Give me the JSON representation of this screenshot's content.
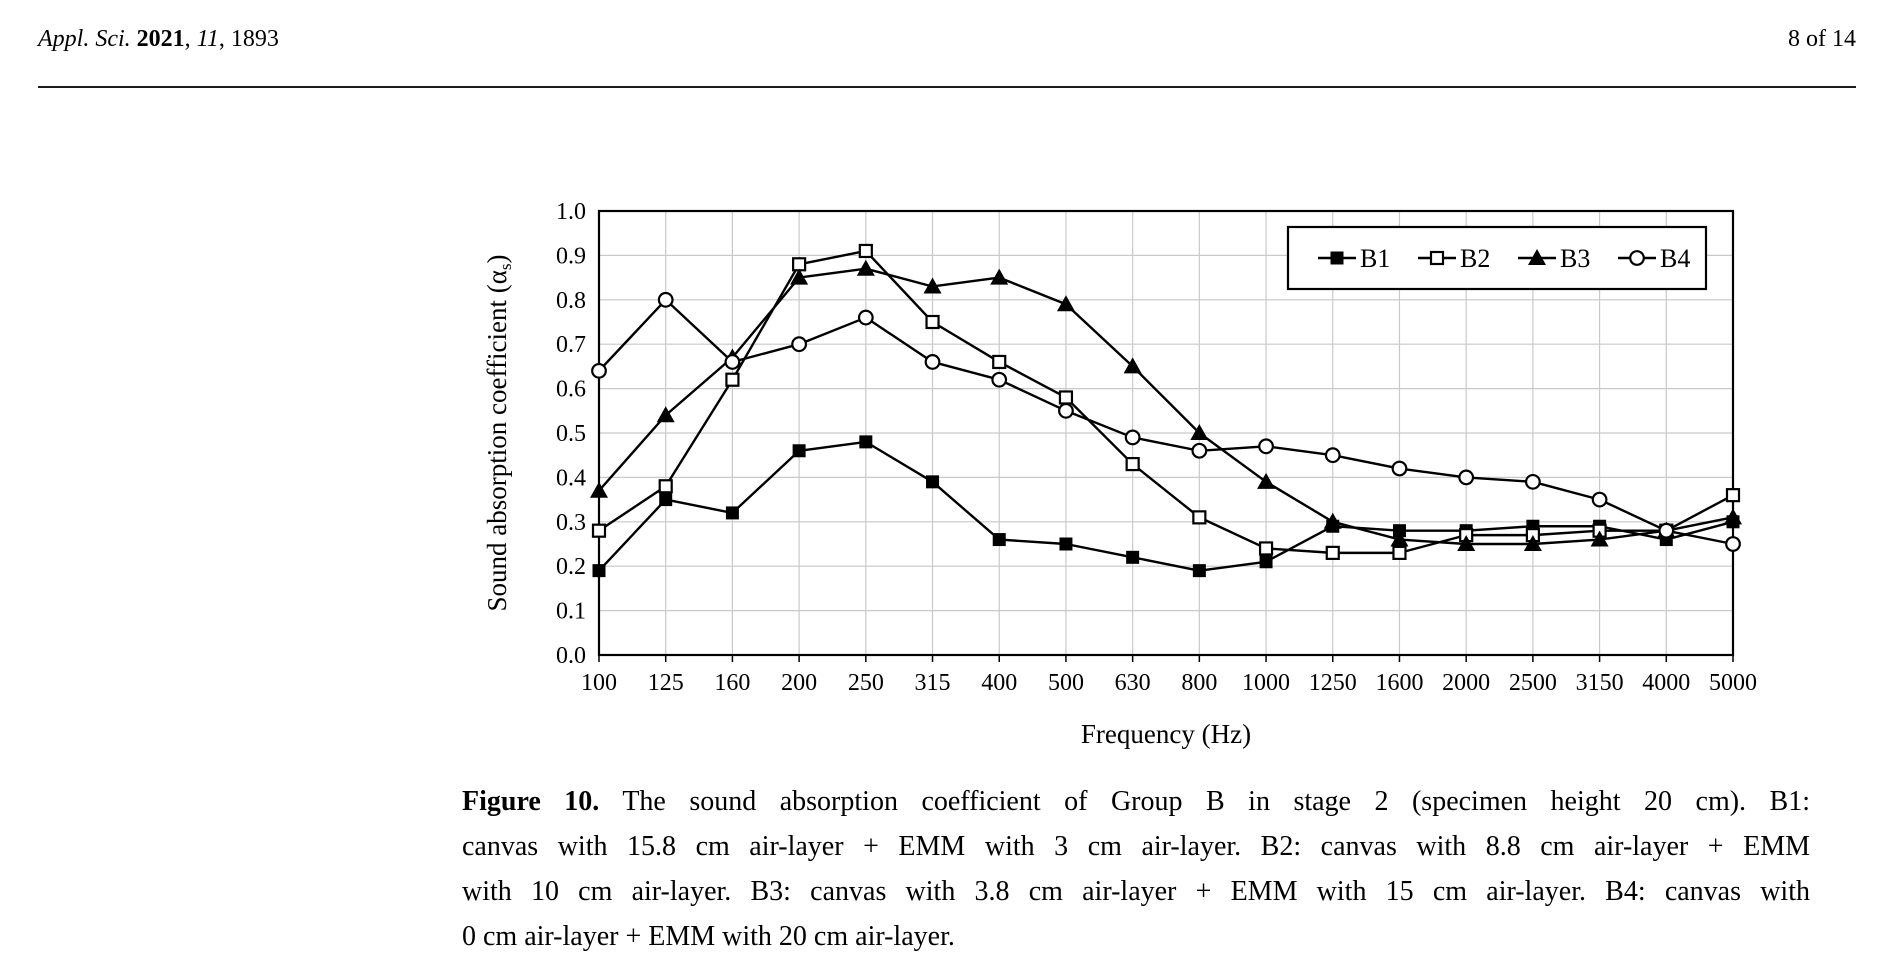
{
  "header": {
    "left_parts": [
      {
        "text": "Appl. Sci. ",
        "style": "italic"
      },
      {
        "text": "2021",
        "style": "bold"
      },
      {
        "text": ", ",
        "style": "normal"
      },
      {
        "text": "11",
        "style": "italic"
      },
      {
        "text": ", 1893",
        "style": "normal"
      }
    ],
    "page_info": "8 of 14"
  },
  "figure": {
    "caption": {
      "label": "Figure 10.",
      "line1_rest": "The sound absorption coefficient of Group B in stage 2 (specimen height 20 cm). B1:",
      "line2": "canvas with 15.8 cm air-layer + EMM with 3 cm air-layer. B2: canvas with 8.8 cm air-layer + EMM",
      "line3": "with 10 cm air-layer. B3: canvas with 3.8 cm air-layer + EMM with 15 cm air-layer. B4: canvas with",
      "line4": "0 cm air-layer + EMM with 20 cm air-layer."
    }
  },
  "chart_data": {
    "type": "line",
    "categories": [
      "100",
      "125",
      "160",
      "200",
      "250",
      "315",
      "400",
      "500",
      "630",
      "800",
      "1000",
      "1250",
      "1600",
      "2000",
      "2500",
      "3150",
      "4000",
      "5000"
    ],
    "series": [
      {
        "name": "B1",
        "marker": "filled-square",
        "values": [
          0.19,
          0.35,
          0.32,
          0.46,
          0.48,
          0.39,
          0.26,
          0.25,
          0.22,
          0.19,
          0.21,
          0.29,
          0.28,
          0.28,
          0.29,
          0.29,
          0.26,
          0.3
        ]
      },
      {
        "name": "B2",
        "marker": "open-square",
        "values": [
          0.28,
          0.38,
          0.62,
          0.88,
          0.91,
          0.75,
          0.66,
          0.58,
          0.43,
          0.31,
          0.24,
          0.23,
          0.23,
          0.27,
          0.27,
          0.28,
          0.28,
          0.36
        ]
      },
      {
        "name": "B3",
        "marker": "filled-triangle",
        "values": [
          0.37,
          0.54,
          0.67,
          0.85,
          0.87,
          0.83,
          0.85,
          0.79,
          0.65,
          0.5,
          0.39,
          0.3,
          0.26,
          0.25,
          0.25,
          0.26,
          0.28,
          0.31
        ]
      },
      {
        "name": "B4",
        "marker": "open-circle",
        "values": [
          0.64,
          0.8,
          0.66,
          0.7,
          0.76,
          0.66,
          0.62,
          0.55,
          0.49,
          0.46,
          0.47,
          0.45,
          0.42,
          0.4,
          0.39,
          0.35,
          0.28,
          0.25
        ]
      }
    ],
    "xlabel": "Frequency (Hz)",
    "ylabel": {
      "text": "Sound absorption coefficient (α",
      "subscript": "s",
      "suffix": ")"
    },
    "ylim": [
      0.0,
      1.0
    ],
    "ytick_step": 0.1,
    "y_tick_labels": [
      "0.0",
      "0.1",
      "0.2",
      "0.3",
      "0.4",
      "0.5",
      "0.6",
      "0.7",
      "0.8",
      "0.9",
      "1.0"
    ],
    "grid": true,
    "legend_position": "top-right",
    "line_color": "#000000",
    "grid_color": "#c9c9c9",
    "background_color": "#ffffff"
  }
}
